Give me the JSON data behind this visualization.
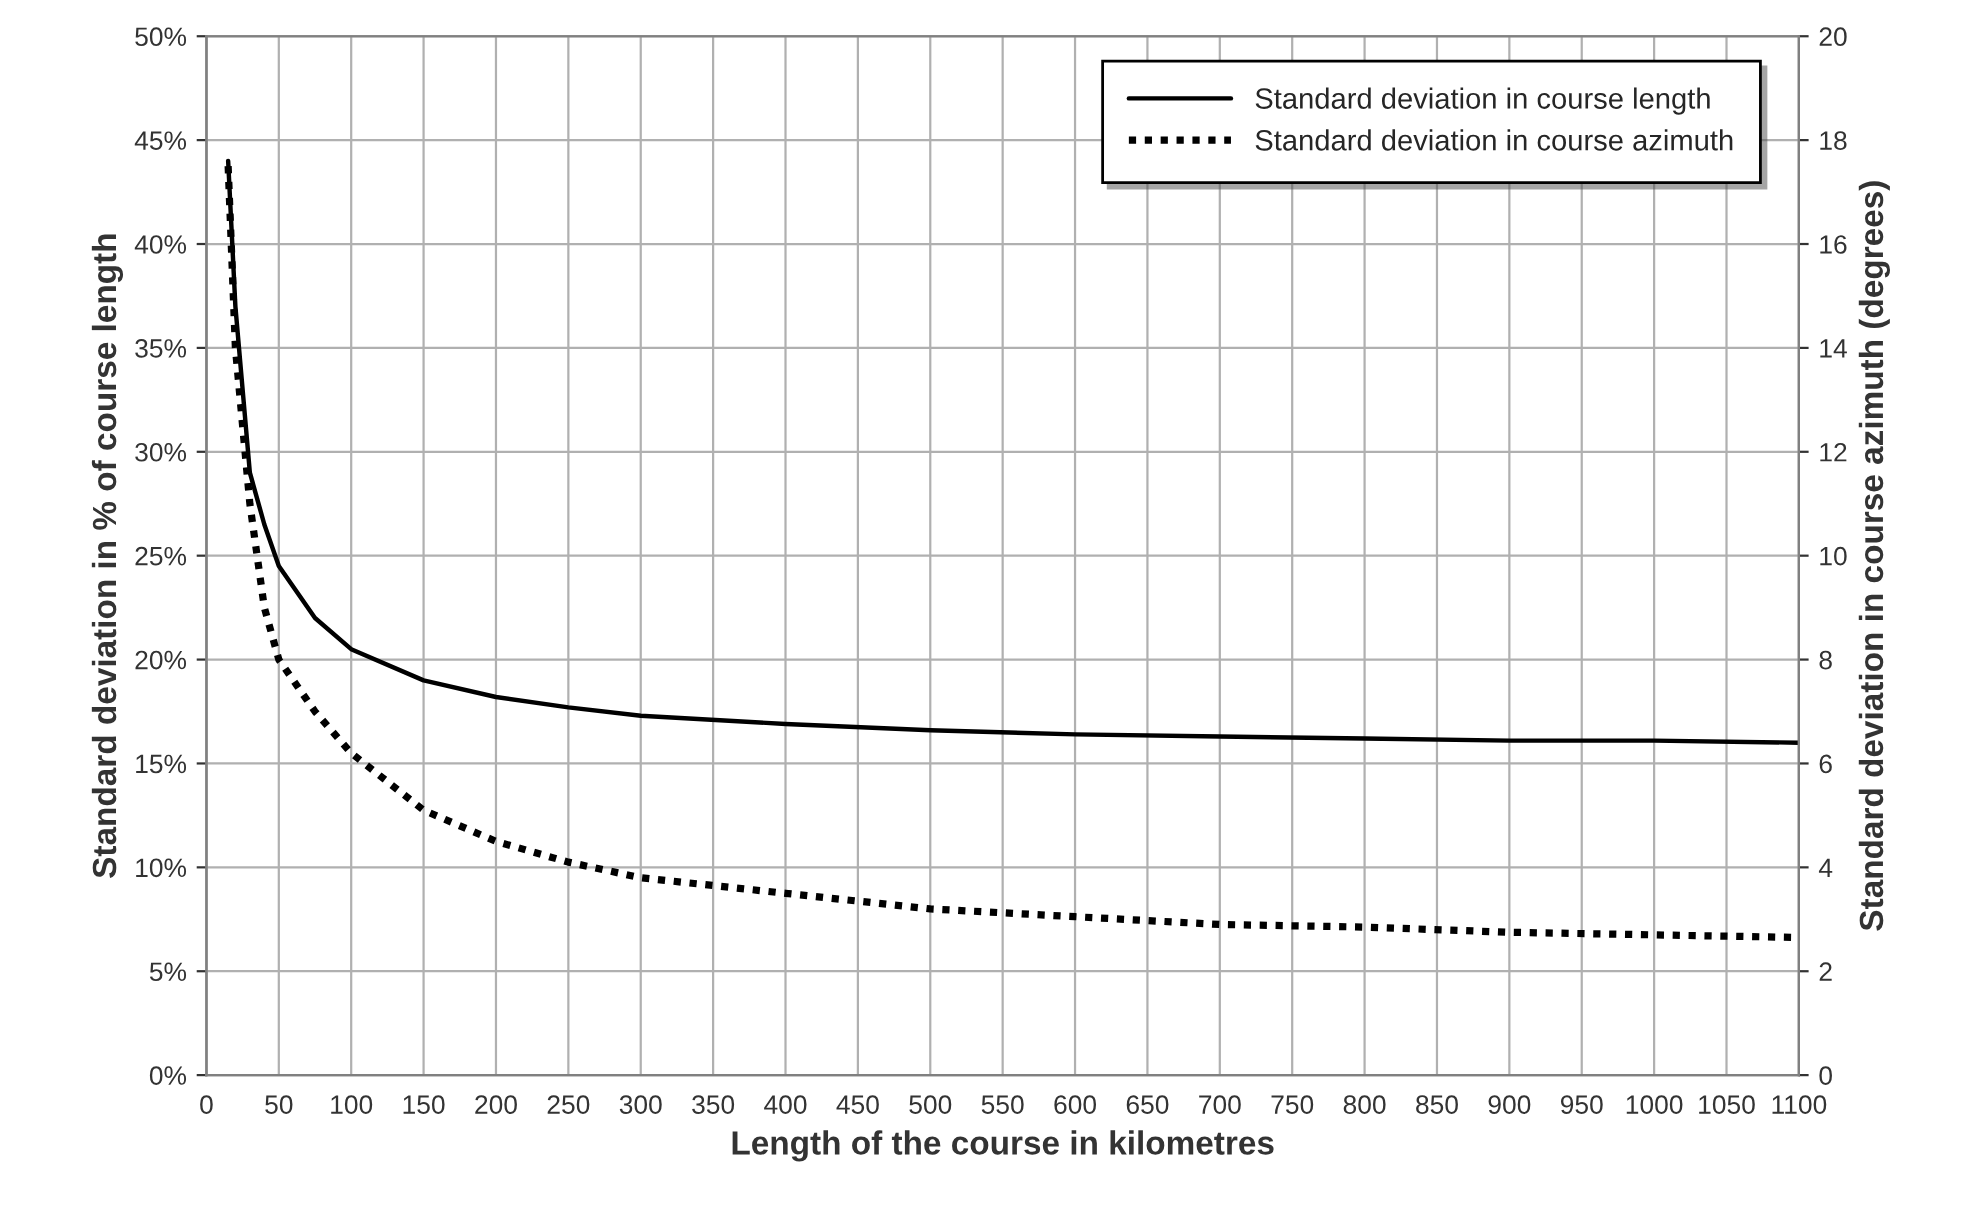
{
  "chart_data": {
    "type": "line",
    "xlabel": "Length of the course in kilometres",
    "ylabel": "Standard deviation in % of course length",
    "y2label": "Standard deviation in course azimuth (degrees)",
    "xlim": [
      0,
      1100
    ],
    "xticks": [
      0,
      50,
      100,
      150,
      200,
      250,
      300,
      350,
      400,
      450,
      500,
      550,
      600,
      650,
      700,
      750,
      800,
      850,
      900,
      950,
      1000,
      1050,
      1100
    ],
    "ylim": [
      0,
      50
    ],
    "yticks": [
      {
        "value": 0,
        "label": "0%"
      },
      {
        "value": 5,
        "label": "5%"
      },
      {
        "value": 10,
        "label": "10%"
      },
      {
        "value": 15,
        "label": "15%"
      },
      {
        "value": 20,
        "label": "20%"
      },
      {
        "value": 25,
        "label": "25%"
      },
      {
        "value": 30,
        "label": "30%"
      },
      {
        "value": 35,
        "label": "35%"
      },
      {
        "value": 40,
        "label": "40%"
      },
      {
        "value": 45,
        "label": "45%"
      },
      {
        "value": 50,
        "label": "50%"
      }
    ],
    "y2lim": [
      0,
      20
    ],
    "y2ticks": [
      0,
      2,
      4,
      6,
      8,
      10,
      12,
      14,
      16,
      18,
      20
    ],
    "grid": true,
    "legend": "top right",
    "series": [
      {
        "name": "Standard deviation in course length",
        "color": "#000000",
        "line_style": "solid",
        "x": [
          15,
          20,
          30,
          40,
          50,
          75,
          100,
          150,
          200,
          250,
          300,
          400,
          500,
          600,
          700,
          800,
          900,
          1000,
          1100
        ],
        "values": [
          44,
          37,
          29,
          26.5,
          24.5,
          22,
          20.5,
          19,
          18.2,
          17.7,
          17.3,
          16.9,
          16.6,
          16.4,
          16.3,
          16.2,
          16.1,
          16.1,
          16.0
        ]
      },
      {
        "name": "Standard deviation in course azimuth",
        "color": "#000000",
        "line_style": "dotted",
        "axis": "y2",
        "x": [
          15,
          20,
          30,
          40,
          50,
          75,
          100,
          150,
          200,
          250,
          300,
          400,
          500,
          600,
          700,
          800,
          900,
          1000,
          1100
        ],
        "values": [
          17.5,
          14,
          11,
          9,
          8,
          7,
          6.2,
          5.1,
          4.5,
          4.1,
          3.8,
          3.5,
          3.2,
          3.05,
          2.9,
          2.85,
          2.75,
          2.7,
          2.65
        ]
      }
    ]
  }
}
